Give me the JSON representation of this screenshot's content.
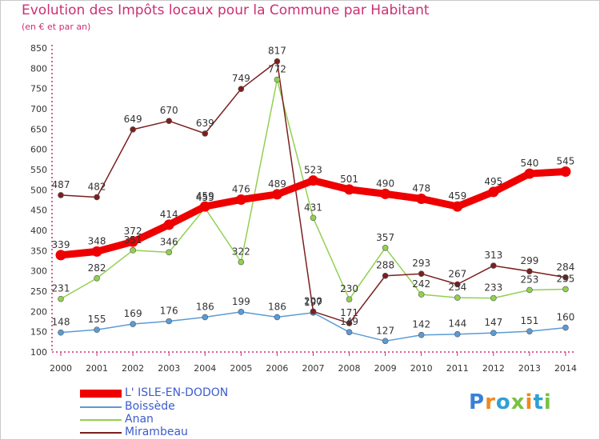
{
  "title": "Evolution des Impôts locaux pour la Commune par Habitant",
  "subtitle": "(en € et par an)",
  "logo": {
    "text": "Proxiti",
    "colors": [
      "#3a7fd5",
      "#f08a1e",
      "#2f9fd6",
      "#7ac143",
      "#f08a1e"
    ]
  },
  "chart_data": {
    "type": "line",
    "title": "Evolution des Impôts locaux pour la Commune par Habitant",
    "subtitle": "(en € et par an)",
    "xlabel": "",
    "ylabel": "",
    "x": [
      "2000",
      "2001",
      "2002",
      "2003",
      "2004",
      "2005",
      "2006",
      "2007",
      "2008",
      "2009",
      "2010",
      "2011",
      "2012",
      "2013",
      "2014"
    ],
    "ylim": [
      100,
      850
    ],
    "yticks": [
      100,
      150,
      200,
      250,
      300,
      350,
      400,
      450,
      500,
      550,
      600,
      650,
      700,
      750,
      800,
      850
    ],
    "grid": false,
    "legend_position": "bottom-left",
    "series": [
      {
        "name": "L' ISLE-EN-DODON",
        "color": "#ee0000",
        "values": [
          339,
          348,
          372,
          414,
          459,
          476,
          489,
          523,
          501,
          490,
          478,
          459,
          495,
          540,
          545
        ]
      },
      {
        "name": "Boissède",
        "color": "#5b9bd5",
        "values": [
          148,
          155,
          169,
          176,
          186,
          199,
          186,
          197,
          149,
          127,
          142,
          144,
          147,
          151,
          160
        ]
      },
      {
        "name": "Anan",
        "color": "#92d050",
        "values": [
          231,
          282,
          351,
          346,
          455,
          322,
          772,
          431,
          230,
          357,
          242,
          234,
          233,
          253,
          255
        ]
      },
      {
        "name": "Mirambeau",
        "color": "#7b1f1f",
        "values": [
          487,
          482,
          649,
          670,
          639,
          749,
          817,
          200,
          171,
          288,
          293,
          267,
          313,
          299,
          284
        ]
      }
    ]
  }
}
